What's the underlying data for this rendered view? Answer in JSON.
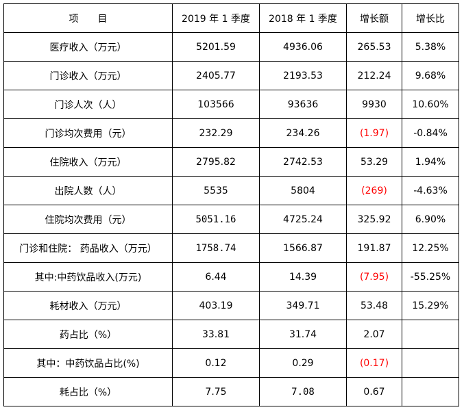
{
  "header": {
    "item": "项　　目",
    "y2019": "2019 年 1 季度",
    "y2018": "2018 年 1 季度",
    "increase": "增长额",
    "ratio": "增长比"
  },
  "rows": [
    {
      "label": "医疗收入（万元）",
      "y2019": "5201.59",
      "y2018": "4936.06",
      "increase": "265.53",
      "ratio": "5.38%"
    },
    {
      "label": "门诊收入（万元）",
      "y2019": "2405.77",
      "y2018": "2193.53",
      "increase": "212.24",
      "ratio": "9.68%"
    },
    {
      "label": "门诊人次（人）",
      "y2019": "103566",
      "y2018": "93636",
      "increase": "9930",
      "ratio": "10.60%"
    },
    {
      "label": "门诊均次费用（元）",
      "y2019": "232.29",
      "y2018": "234.26",
      "increase": "(1.97)",
      "ratio": "-0.84%"
    },
    {
      "label": "住院收入（万元）",
      "y2019": "2795.82",
      "y2018": "2742.53",
      "increase": "53.29",
      "ratio": "1.94%"
    },
    {
      "label": "出院人数（人）",
      "y2019": "5535",
      "y2018": "5804",
      "increase": "(269)",
      "ratio": "-4.63%"
    },
    {
      "label": "住院均次费用（元）",
      "y2019": "5051.16",
      "y2018": "4725.24",
      "increase": "325.92",
      "ratio": "6.90%"
    },
    {
      "label": "门诊和住院： 药品收入（万元）",
      "y2019": "1758.74",
      "y2018": "1566.87",
      "increase": "191.87",
      "ratio": "12.25%"
    },
    {
      "label": "其中:中药饮品收入(万元)",
      "y2019": "6.44",
      "y2018": "14.39",
      "increase": "(7.95)",
      "ratio": "-55.25%"
    },
    {
      "label": "耗材收入（万元）",
      "y2019": "403.19",
      "y2018": "349.71",
      "increase": "53.48",
      "ratio": "15.29%"
    },
    {
      "label": "药占比（%）",
      "y2019": "33.81",
      "y2018": "31.74",
      "increase": "2.07",
      "ratio": ""
    },
    {
      "label": "其中：中药饮品占比(%)",
      "y2019": "0.12",
      "y2018": "0.29",
      "increase": "(0.17)",
      "ratio": ""
    },
    {
      "label": "耗占比（%）",
      "y2019": "7.75",
      "y2018": "7.08",
      "increase": "0.67",
      "ratio": ""
    }
  ],
  "colors": {
    "negative": "#ff0000",
    "border": "#000000"
  }
}
